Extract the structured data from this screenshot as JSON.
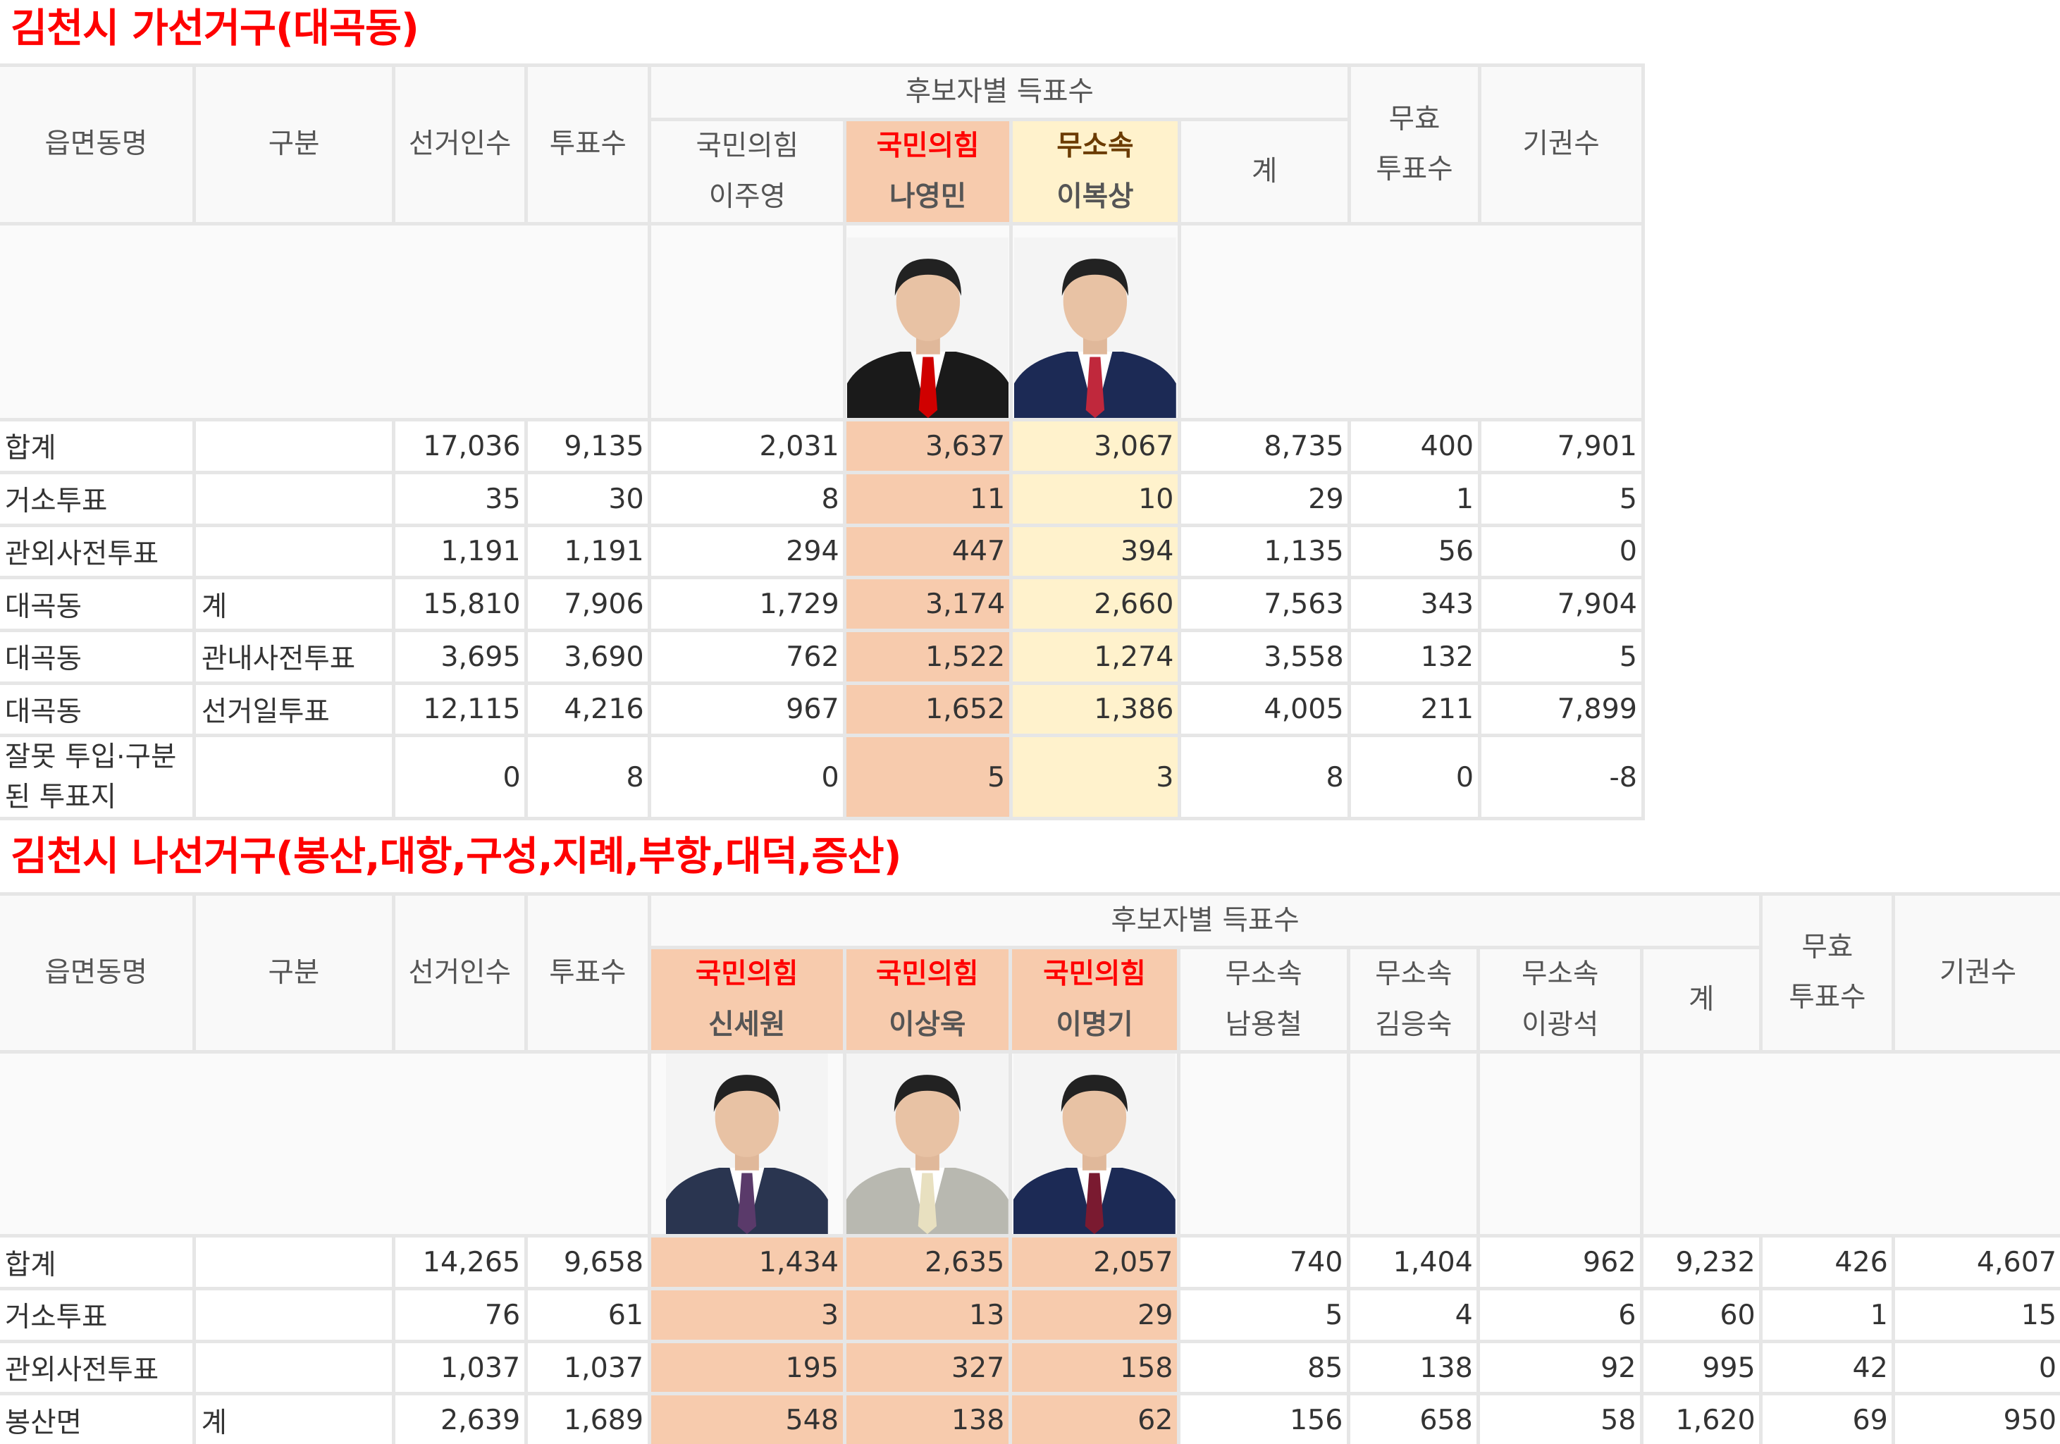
{
  "tables": [
    {
      "title": "김천시 가선거구(대곡동)",
      "headers": {
        "area": "읍면동명",
        "type": "구분",
        "electors": "선거인수",
        "votes": "투표수",
        "cand_group": "후보자별 득표수",
        "total": "계",
        "invalid_1": "무효",
        "invalid_2": "투표수",
        "abstain": "기권수"
      },
      "candidates": [
        {
          "party": "국민의힘",
          "name": "이주영",
          "highlight": "none",
          "photo": false
        },
        {
          "party": "국민의힘",
          "name": "나영민",
          "highlight": "salmon",
          "photo": true,
          "tie": "#d00000",
          "suit": "#1a1a1a"
        },
        {
          "party": "무소속",
          "name": "이복상",
          "highlight": "yellow",
          "photo": true,
          "tie": "#c0283c",
          "suit": "#1c2a55"
        }
      ],
      "rows": [
        {
          "area": "합계",
          "type": "",
          "cells": [
            "17,036",
            "9,135",
            "2,031",
            "3,637",
            "3,067",
            "8,735",
            "400",
            "7,901"
          ]
        },
        {
          "area": "거소투표",
          "type": "",
          "cells": [
            "35",
            "30",
            "8",
            "11",
            "10",
            "29",
            "1",
            "5"
          ]
        },
        {
          "area": "관외사전투표",
          "type": "",
          "cells": [
            "1,191",
            "1,191",
            "294",
            "447",
            "394",
            "1,135",
            "56",
            "0"
          ]
        },
        {
          "area": "대곡동",
          "type": "계",
          "cells": [
            "15,810",
            "7,906",
            "1,729",
            "3,174",
            "2,660",
            "7,563",
            "343",
            "7,904"
          ]
        },
        {
          "area": "대곡동",
          "type": "관내사전투표",
          "cells": [
            "3,695",
            "3,690",
            "762",
            "1,522",
            "1,274",
            "3,558",
            "132",
            "5"
          ]
        },
        {
          "area": "대곡동",
          "type": "선거일투표",
          "cells": [
            "12,115",
            "4,216",
            "967",
            "1,652",
            "1,386",
            "4,005",
            "211",
            "7,899"
          ]
        },
        {
          "area": "잘못 투입·구분된 투표지",
          "type": "",
          "cells": [
            "0",
            "8",
            "0",
            "5",
            "3",
            "8",
            "0",
            "-8"
          ]
        }
      ]
    },
    {
      "title": "김천시 나선거구(봉산,대항,구성,지례,부항,대덕,증산)",
      "headers": {
        "area": "읍면동명",
        "type": "구분",
        "electors": "선거인수",
        "votes": "투표수",
        "cand_group": "후보자별 득표수",
        "total": "계",
        "invalid_1": "무효",
        "invalid_2": "투표수",
        "abstain": "기권수"
      },
      "candidates": [
        {
          "party": "국민의힘",
          "name": "신세원",
          "highlight": "salmon",
          "photo": true,
          "tie": "#5a3a6a",
          "suit": "#2a3550"
        },
        {
          "party": "국민의힘",
          "name": "이상욱",
          "highlight": "salmon",
          "photo": true,
          "tie": "#e8e0c0",
          "suit": "#b8b8b0"
        },
        {
          "party": "국민의힘",
          "name": "이명기",
          "highlight": "salmon",
          "photo": true,
          "tie": "#7a1a30",
          "suit": "#1c2a55"
        },
        {
          "party": "무소속",
          "name": "남용철",
          "highlight": "none",
          "photo": false
        },
        {
          "party": "무소속",
          "name": "김응숙",
          "highlight": "none",
          "photo": false
        },
        {
          "party": "무소속",
          "name": "이광석",
          "highlight": "none",
          "photo": false
        }
      ],
      "rows": [
        {
          "area": "합계",
          "type": "",
          "cells": [
            "14,265",
            "9,658",
            "1,434",
            "2,635",
            "2,057",
            "740",
            "1,404",
            "962",
            "9,232",
            "426",
            "4,607"
          ]
        },
        {
          "area": "거소투표",
          "type": "",
          "cells": [
            "76",
            "61",
            "3",
            "13",
            "29",
            "5",
            "4",
            "6",
            "60",
            "1",
            "15"
          ]
        },
        {
          "area": "관외사전투표",
          "type": "",
          "cells": [
            "1,037",
            "1,037",
            "195",
            "327",
            "158",
            "85",
            "138",
            "92",
            "995",
            "42",
            "0"
          ]
        },
        {
          "area": "봉산면",
          "type": "계",
          "cells": [
            "2,639",
            "1,689",
            "548",
            "138",
            "62",
            "156",
            "658",
            "58",
            "1,620",
            "69",
            "950"
          ]
        }
      ]
    }
  ],
  "colors": {
    "salmon": "#f7cbad",
    "yellow": "#fff2cc",
    "title": "#ff0000"
  }
}
